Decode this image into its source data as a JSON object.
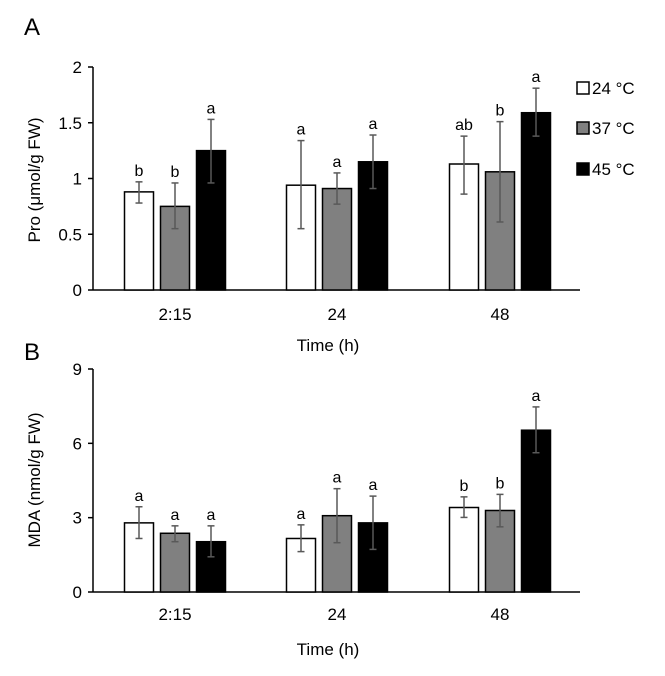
{
  "chart_data": [
    {
      "panel": "A",
      "type": "bar",
      "title": "",
      "xlabel": "Time (h)",
      "ylabel": "Pro (μmol/g FW)",
      "ylim": [
        0,
        2
      ],
      "yticks": [
        "0",
        "0.5",
        "1",
        "1.5",
        "2"
      ],
      "ytick_values": [
        0,
        0.5,
        1,
        1.5,
        2
      ],
      "grid": false,
      "categories": [
        "2:15",
        "24",
        "48"
      ],
      "legend_position": "top-right",
      "series": [
        {
          "name": "24 °C",
          "color": "#ffffff",
          "values": [
            0.88,
            0.94,
            1.13
          ],
          "err_upper": [
            0.97,
            1.34,
            1.38
          ],
          "err_lower": [
            0.78,
            0.55,
            0.86
          ],
          "letters": [
            "b",
            "a",
            "ab"
          ]
        },
        {
          "name": "37 °C",
          "color": "#808080",
          "values": [
            0.75,
            0.91,
            1.06
          ],
          "err_upper": [
            0.96,
            1.05,
            1.51
          ],
          "err_lower": [
            0.55,
            0.77,
            0.61
          ],
          "letters": [
            "b",
            "a",
            "b"
          ]
        },
        {
          "name": "45 °C",
          "color": "#000000",
          "values": [
            1.25,
            1.15,
            1.59
          ],
          "err_upper": [
            1.53,
            1.39,
            1.81
          ],
          "err_lower": [
            0.96,
            0.91,
            1.38
          ],
          "letters": [
            "a",
            "a",
            "a"
          ]
        }
      ]
    },
    {
      "panel": "B",
      "type": "bar",
      "title": "",
      "xlabel": "Time (h)",
      "ylabel": "MDA (nmol/g FW)",
      "ylim": [
        0,
        9
      ],
      "yticks": [
        "0",
        "3",
        "6",
        "9"
      ],
      "ytick_values": [
        0,
        3,
        6,
        9
      ],
      "grid": false,
      "categories": [
        "2:15",
        "24",
        "48"
      ],
      "series": [
        {
          "name": "24 °C",
          "color": "#ffffff",
          "values": [
            2.79,
            2.16,
            3.41
          ],
          "err_upper": [
            3.44,
            2.71,
            3.84
          ],
          "err_lower": [
            2.16,
            1.63,
            3.01
          ],
          "letters": [
            "a",
            "a",
            "b"
          ]
        },
        {
          "name": "37 °C",
          "color": "#808080",
          "values": [
            2.37,
            3.08,
            3.29
          ],
          "err_upper": [
            2.67,
            4.17,
            3.94
          ],
          "err_lower": [
            2.03,
            1.99,
            2.63
          ],
          "letters": [
            "a",
            "a",
            "b"
          ]
        },
        {
          "name": "45 °C",
          "color": "#000000",
          "values": [
            2.03,
            2.79,
            6.53
          ],
          "err_upper": [
            2.67,
            3.87,
            7.47
          ],
          "err_lower": [
            1.42,
            1.72,
            5.62
          ],
          "letters": [
            "a",
            "a",
            "a"
          ]
        }
      ]
    }
  ],
  "panels": {
    "A": {
      "letter": "A",
      "xlabel": "Time (h)",
      "ylabel": "Pro (μmol/g FW)"
    },
    "B": {
      "letter": "B",
      "xlabel": "Time (h)",
      "ylabel": "MDA (nmol/g FW)"
    }
  },
  "legend": {
    "items": [
      {
        "label": "24 °C",
        "color": "#ffffff"
      },
      {
        "label": "37 °C",
        "color": "#808080"
      },
      {
        "label": "45 °C",
        "color": "#000000"
      }
    ]
  },
  "colors": {
    "error_bar": "#595959",
    "axis": "#000000",
    "bar_border": "#000000"
  }
}
